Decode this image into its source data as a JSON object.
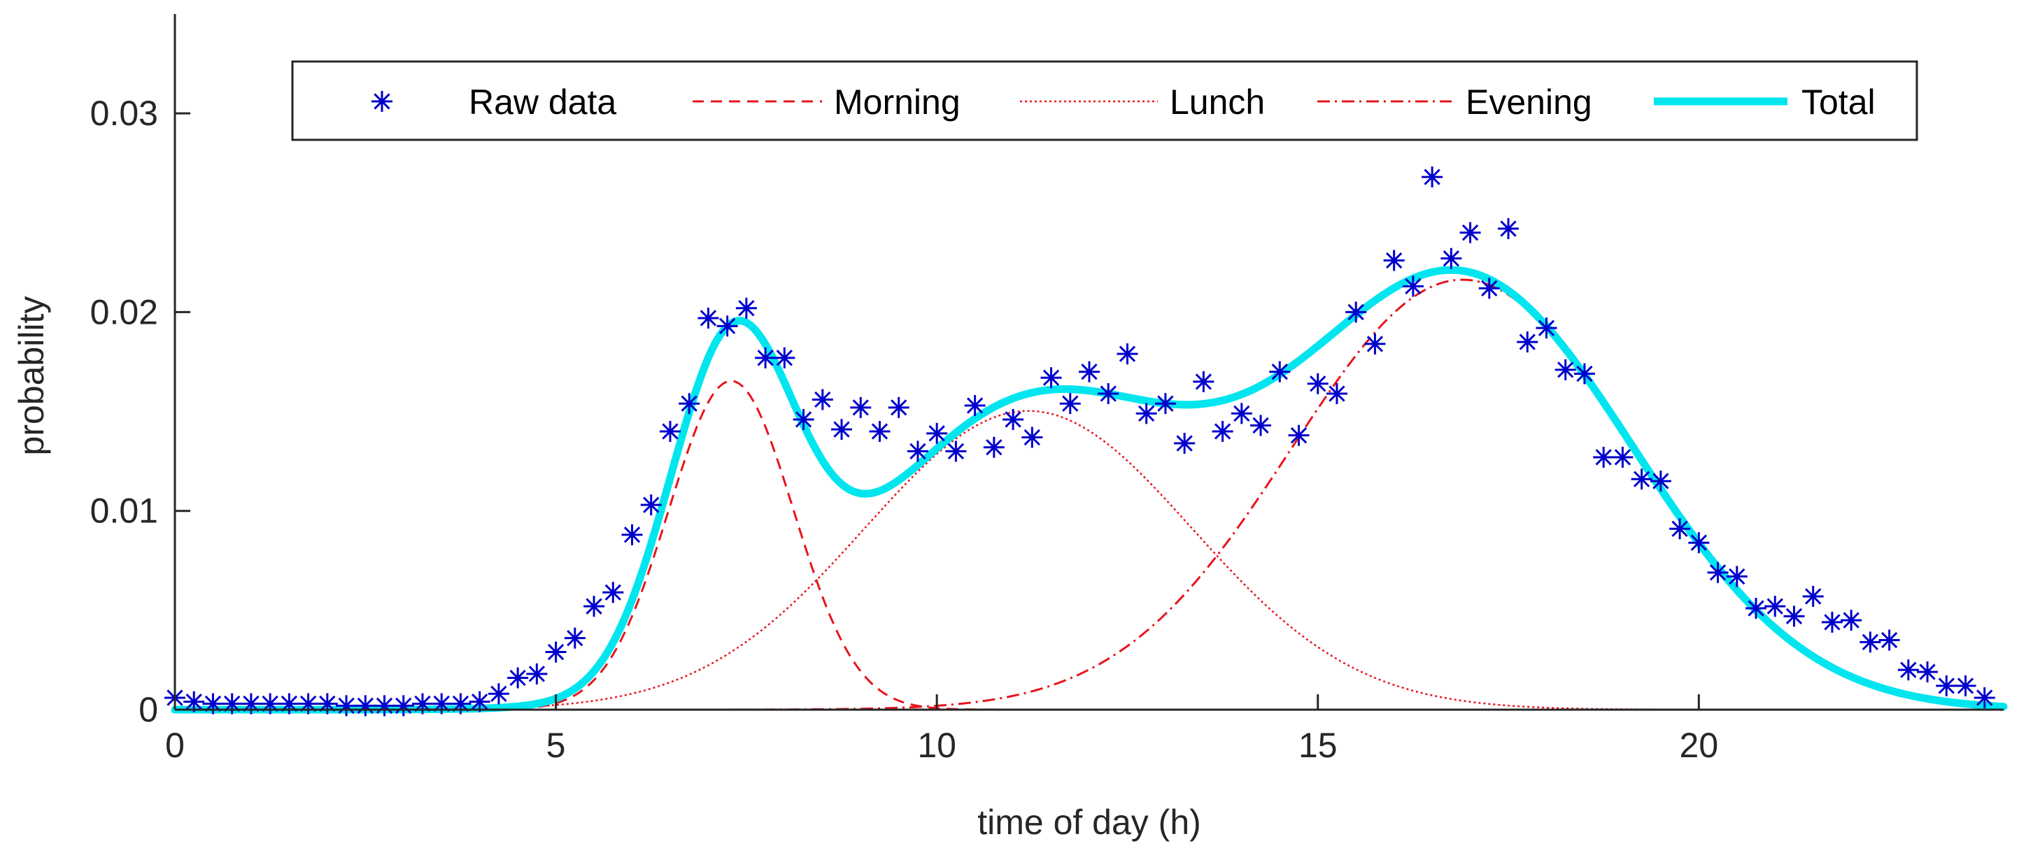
{
  "chart_data": {
    "type": "line",
    "xlabel": "time of day (h)",
    "ylabel": "probability",
    "xlim": [
      0,
      24
    ],
    "ylim": [
      0,
      0.035
    ],
    "xticks": [
      0,
      5,
      10,
      15,
      20
    ],
    "xtick_labels": [
      "0",
      "5",
      "10",
      "15",
      "20"
    ],
    "yticks": [
      0,
      0.01,
      0.02,
      0.03
    ],
    "ytick_labels": [
      "0",
      "0.01",
      "0.02",
      "0.03"
    ],
    "grid": false,
    "legend_position": "top",
    "raw_data": {
      "name": "Raw data",
      "color": "#0000cc",
      "marker": "asterisk",
      "x": [
        0,
        0.25,
        0.5,
        0.75,
        1,
        1.25,
        1.5,
        1.75,
        2,
        2.25,
        2.5,
        2.75,
        3,
        3.25,
        3.5,
        3.75,
        4,
        4.25,
        4.5,
        4.75,
        5,
        5.25,
        5.5,
        5.75,
        6,
        6.25,
        6.5,
        6.75,
        7,
        7.25,
        7.5,
        7.75,
        8,
        8.25,
        8.5,
        8.75,
        9,
        9.25,
        9.5,
        9.75,
        10,
        10.25,
        10.5,
        10.75,
        11,
        11.25,
        11.5,
        11.75,
        12,
        12.25,
        12.5,
        12.75,
        13,
        13.25,
        13.5,
        13.75,
        14,
        14.25,
        14.5,
        14.75,
        15,
        15.25,
        15.5,
        15.75,
        16,
        16.25,
        16.5,
        16.75,
        17,
        17.25,
        17.5,
        17.75,
        18,
        18.25,
        18.5,
        18.75,
        19,
        19.25,
        19.5,
        19.75,
        20,
        20.25,
        20.5,
        20.75,
        21,
        21.25,
        21.5,
        21.75,
        22,
        22.25,
        22.5,
        22.75,
        23,
        23.25,
        23.5,
        23.75
      ],
      "y": [
        0.0006,
        0.0004,
        0.0003,
        0.0003,
        0.0003,
        0.0003,
        0.0003,
        0.0003,
        0.0003,
        0.0002,
        0.0002,
        0.0002,
        0.0002,
        0.0003,
        0.0003,
        0.0003,
        0.0004,
        0.0008,
        0.0016,
        0.0018,
        0.0029,
        0.0036,
        0.0052,
        0.0059,
        0.0088,
        0.0103,
        0.014,
        0.0154,
        0.0197,
        0.0193,
        0.0202,
        0.0177,
        0.0177,
        0.0146,
        0.0156,
        0.0141,
        0.0152,
        0.014,
        0.0152,
        0.013,
        0.0139,
        0.013,
        0.0153,
        0.0132,
        0.0146,
        0.0137,
        0.0167,
        0.0154,
        0.017,
        0.0159,
        0.0179,
        0.0149,
        0.0154,
        0.0134,
        0.0165,
        0.014,
        0.0149,
        0.0143,
        0.017,
        0.0138,
        0.0164,
        0.0159,
        0.02,
        0.0184,
        0.0226,
        0.0213,
        0.0268,
        0.0227,
        0.024,
        0.0212,
        0.0242,
        0.0185,
        0.0192,
        0.0171,
        0.0169,
        0.0127,
        0.0127,
        0.0116,
        0.0115,
        0.0091,
        0.0084,
        0.0069,
        0.0067,
        0.0051,
        0.0052,
        0.0047,
        0.0057,
        0.0044,
        0.0045,
        0.0034,
        0.0035,
        0.002,
        0.0019,
        0.0012,
        0.0012,
        0.0006
      ]
    },
    "components": [
      {
        "name": "Morning",
        "color": "#e8141c",
        "dash": "dashed",
        "weight": 0.034,
        "mean": 7.3,
        "sd": 0.82
      },
      {
        "name": "Lunch",
        "color": "#e8141c",
        "dash": "dotted",
        "weight": 0.081,
        "mean": 11.2,
        "sd": 2.15
      },
      {
        "name": "Evening",
        "color": "#e8141c",
        "dash": "dashdot",
        "weight": 0.122,
        "mean": 16.9,
        "sd": 2.25
      }
    ],
    "total": {
      "name": "Total",
      "color": "#00e5ee",
      "description_of_computation": null
    }
  }
}
